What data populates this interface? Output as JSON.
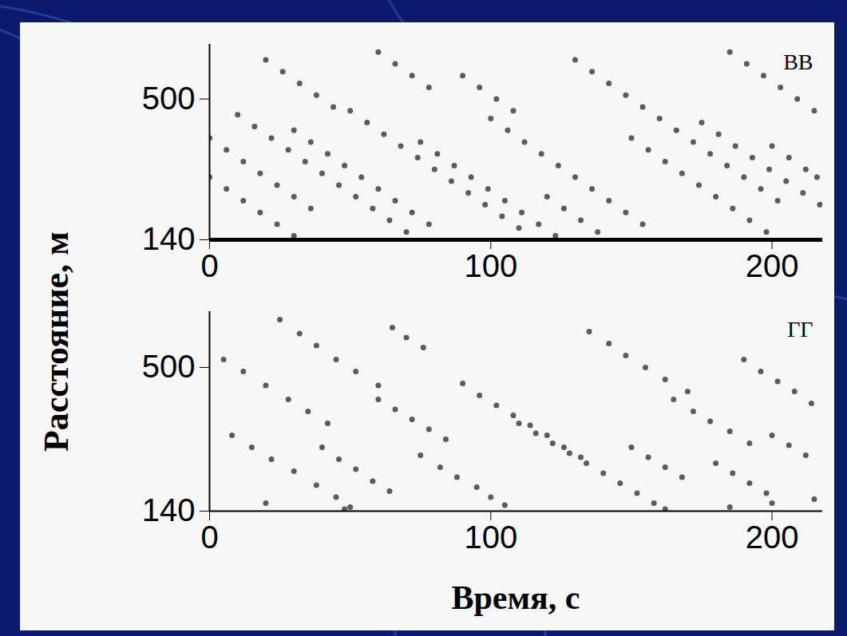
{
  "chart_data": [
    {
      "type": "scatter",
      "title": "ВВ",
      "ylabel": "Расстояние, м",
      "color": "#1a1a1a",
      "x": [
        0,
        6,
        12,
        18,
        24,
        30,
        36,
        10,
        16,
        22,
        28,
        34,
        40,
        46,
        52,
        58,
        64,
        70,
        30,
        36,
        42,
        48,
        54,
        60,
        66,
        72,
        78,
        50,
        56,
        62,
        68,
        74,
        80,
        86,
        92,
        98,
        104,
        110,
        75,
        81,
        87,
        93,
        99,
        105,
        111,
        117,
        123,
        100,
        106,
        112,
        118,
        124,
        130,
        136,
        142,
        148,
        154,
        130,
        136,
        142,
        148,
        154,
        160,
        166,
        172,
        178,
        184,
        190,
        196,
        202,
        150,
        156,
        162,
        168,
        174,
        180,
        186,
        192,
        198,
        175,
        181,
        187,
        193,
        199,
        205,
        211,
        217,
        20,
        26,
        32,
        38,
        44,
        60,
        66,
        72,
        78,
        0,
        6,
        12,
        18,
        24,
        30,
        90,
        96,
        102,
        108,
        185,
        191,
        197,
        203,
        209,
        215,
        120,
        126,
        132,
        138,
        200,
        206,
        212,
        216
      ],
      "values": [
        400,
        370,
        340,
        310,
        280,
        250,
        220,
        460,
        430,
        400,
        370,
        340,
        310,
        280,
        250,
        220,
        190,
        160,
        420,
        390,
        360,
        330,
        300,
        270,
        240,
        210,
        180,
        470,
        440,
        410,
        380,
        350,
        320,
        290,
        260,
        230,
        200,
        170,
        390,
        360,
        330,
        300,
        270,
        240,
        210,
        180,
        150,
        450,
        420,
        390,
        360,
        330,
        300,
        270,
        240,
        210,
        180,
        600,
        570,
        540,
        510,
        480,
        450,
        420,
        390,
        360,
        330,
        300,
        270,
        240,
        400,
        370,
        340,
        310,
        280,
        250,
        220,
        190,
        160,
        440,
        410,
        380,
        350,
        320,
        290,
        260,
        230,
        600,
        570,
        540,
        510,
        480,
        620,
        590,
        560,
        530,
        300,
        270,
        240,
        210,
        180,
        150,
        560,
        530,
        500,
        470,
        620,
        590,
        560,
        530,
        500,
        470,
        250,
        220,
        190,
        160,
        380,
        350,
        320,
        300
      ],
      "xlim": [
        0,
        218
      ],
      "ylim": [
        140,
        640
      ],
      "xticks": [
        0,
        100,
        200
      ],
      "yticks": [
        140,
        500
      ]
    },
    {
      "type": "scatter",
      "title": "ГГ",
      "xlabel": "Время, с",
      "color": "#1a1a1a",
      "x": [
        5,
        12,
        20,
        28,
        35,
        42,
        25,
        32,
        38,
        45,
        52,
        60,
        40,
        46,
        52,
        58,
        64,
        8,
        15,
        22,
        30,
        38,
        45,
        50,
        90,
        96,
        102,
        108,
        114,
        120,
        126,
        132,
        110,
        116,
        122,
        128,
        134,
        140,
        146,
        152,
        158,
        162,
        135,
        142,
        148,
        155,
        162,
        170,
        165,
        172,
        178,
        185,
        192,
        190,
        196,
        202,
        208,
        214,
        60,
        66,
        72,
        78,
        84,
        75,
        82,
        88,
        95,
        100,
        180,
        186,
        192,
        198,
        200,
        206,
        212,
        65,
        70,
        76,
        150,
        156,
        162,
        168,
        20,
        48,
        105,
        185,
        200,
        215
      ],
      "values": [
        520,
        490,
        455,
        420,
        390,
        360,
        620,
        585,
        555,
        520,
        490,
        455,
        300,
        270,
        245,
        215,
        190,
        330,
        300,
        270,
        240,
        205,
        175,
        150,
        460,
        430,
        405,
        380,
        355,
        330,
        300,
        275,
        360,
        335,
        310,
        285,
        260,
        235,
        210,
        185,
        160,
        145,
        590,
        560,
        530,
        500,
        470,
        440,
        420,
        390,
        365,
        340,
        310,
        520,
        490,
        465,
        440,
        410,
        420,
        395,
        370,
        345,
        320,
        280,
        250,
        225,
        200,
        175,
        260,
        235,
        210,
        185,
        330,
        305,
        280,
        600,
        575,
        550,
        300,
        275,
        250,
        225,
        160,
        145,
        155,
        150,
        160,
        170
      ],
      "xlim": [
        0,
        218
      ],
      "ylim": [
        140,
        640
      ],
      "xticks": [
        0,
        100,
        200
      ],
      "yticks": [
        140,
        500
      ]
    }
  ]
}
